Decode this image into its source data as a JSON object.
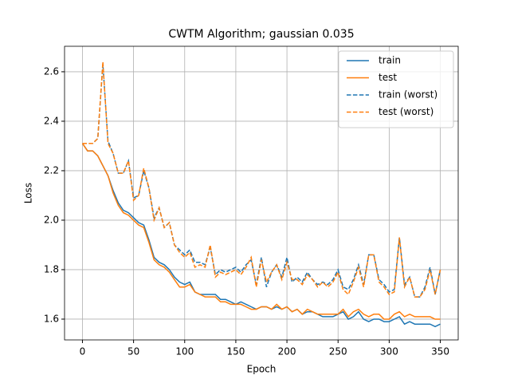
{
  "chart_data": {
    "type": "line",
    "title": "CWTM Algorithm; gaussian 0.035",
    "x_label": "Epoch",
    "y_label": "Loss",
    "x": [
      0,
      5,
      10,
      15,
      20,
      25,
      30,
      35,
      40,
      45,
      50,
      55,
      60,
      65,
      70,
      75,
      80,
      85,
      90,
      95,
      100,
      105,
      110,
      115,
      120,
      125,
      130,
      135,
      140,
      145,
      150,
      155,
      160,
      165,
      170,
      175,
      180,
      185,
      190,
      195,
      200,
      205,
      210,
      215,
      220,
      225,
      230,
      235,
      240,
      245,
      250,
      255,
      260,
      265,
      270,
      275,
      280,
      285,
      290,
      295,
      300,
      305,
      310,
      315,
      320,
      325,
      330,
      335,
      340,
      345,
      350
    ],
    "series": [
      {
        "name": "train",
        "color": "#1f77b4",
        "linestyle": "solid",
        "values": [
          2.31,
          2.28,
          2.28,
          2.26,
          2.22,
          2.18,
          2.12,
          2.07,
          2.04,
          2.03,
          2.01,
          1.99,
          1.98,
          1.92,
          1.85,
          1.83,
          1.82,
          1.8,
          1.77,
          1.75,
          1.74,
          1.75,
          1.71,
          1.7,
          1.7,
          1.7,
          1.7,
          1.68,
          1.68,
          1.67,
          1.66,
          1.67,
          1.66,
          1.65,
          1.64,
          1.65,
          1.65,
          1.64,
          1.65,
          1.64,
          1.65,
          1.63,
          1.64,
          1.62,
          1.63,
          1.63,
          1.62,
          1.61,
          1.61,
          1.61,
          1.62,
          1.63,
          1.6,
          1.61,
          1.63,
          1.6,
          1.59,
          1.6,
          1.6,
          1.59,
          1.59,
          1.6,
          1.61,
          1.58,
          1.59,
          1.58,
          1.58,
          1.58,
          1.58,
          1.57,
          1.58
        ]
      },
      {
        "name": "test",
        "color": "#ff7f0e",
        "linestyle": "solid",
        "values": [
          2.31,
          2.28,
          2.28,
          2.26,
          2.22,
          2.18,
          2.11,
          2.06,
          2.03,
          2.02,
          2.0,
          1.98,
          1.97,
          1.91,
          1.84,
          1.82,
          1.81,
          1.79,
          1.76,
          1.73,
          1.73,
          1.74,
          1.71,
          1.7,
          1.69,
          1.69,
          1.69,
          1.67,
          1.67,
          1.66,
          1.66,
          1.66,
          1.65,
          1.64,
          1.64,
          1.65,
          1.65,
          1.64,
          1.66,
          1.64,
          1.65,
          1.63,
          1.64,
          1.62,
          1.64,
          1.63,
          1.62,
          1.62,
          1.62,
          1.62,
          1.62,
          1.64,
          1.61,
          1.63,
          1.64,
          1.62,
          1.61,
          1.62,
          1.62,
          1.6,
          1.6,
          1.62,
          1.63,
          1.61,
          1.62,
          1.61,
          1.61,
          1.61,
          1.61,
          1.6,
          1.6
        ]
      },
      {
        "name": "train (worst)",
        "color": "#1f77b4",
        "linestyle": "dashed",
        "values": [
          2.31,
          2.31,
          2.31,
          2.33,
          2.63,
          2.32,
          2.27,
          2.19,
          2.19,
          2.24,
          2.09,
          2.1,
          2.2,
          2.13,
          2.01,
          2.05,
          1.97,
          1.99,
          1.9,
          1.88,
          1.86,
          1.88,
          1.83,
          1.83,
          1.82,
          1.89,
          1.78,
          1.8,
          1.79,
          1.8,
          1.81,
          1.79,
          1.82,
          1.84,
          1.74,
          1.85,
          1.73,
          1.79,
          1.82,
          1.77,
          1.85,
          1.75,
          1.77,
          1.75,
          1.79,
          1.76,
          1.74,
          1.75,
          1.74,
          1.76,
          1.8,
          1.73,
          1.72,
          1.76,
          1.82,
          1.74,
          1.86,
          1.86,
          1.76,
          1.74,
          1.71,
          1.72,
          1.93,
          1.74,
          1.77,
          1.69,
          1.69,
          1.73,
          1.81,
          1.7,
          1.8
        ]
      },
      {
        "name": "test (worst)",
        "color": "#ff7f0e",
        "linestyle": "dashed",
        "values": [
          2.31,
          2.31,
          2.31,
          2.33,
          2.64,
          2.31,
          2.27,
          2.19,
          2.19,
          2.24,
          2.08,
          2.1,
          2.21,
          2.13,
          2.0,
          2.05,
          1.97,
          1.99,
          1.9,
          1.87,
          1.85,
          1.87,
          1.81,
          1.82,
          1.81,
          1.9,
          1.77,
          1.79,
          1.78,
          1.79,
          1.8,
          1.78,
          1.81,
          1.85,
          1.73,
          1.84,
          1.75,
          1.79,
          1.82,
          1.76,
          1.83,
          1.76,
          1.76,
          1.74,
          1.78,
          1.76,
          1.73,
          1.75,
          1.73,
          1.75,
          1.79,
          1.72,
          1.7,
          1.75,
          1.81,
          1.73,
          1.86,
          1.86,
          1.75,
          1.73,
          1.7,
          1.71,
          1.93,
          1.73,
          1.77,
          1.69,
          1.69,
          1.72,
          1.8,
          1.7,
          1.8
        ]
      }
    ],
    "xlim": [
      -17.5,
      367.5
    ],
    "ylim": [
      1.516,
      2.703
    ],
    "xticks": [
      0,
      50,
      100,
      150,
      200,
      250,
      300,
      350
    ],
    "yticks": [
      1.6,
      1.8,
      {
        "value": 2,
        "label": "2.0"
      },
      2.2,
      2.4,
      2.6
    ],
    "grid": true,
    "legend": "upper right"
  }
}
